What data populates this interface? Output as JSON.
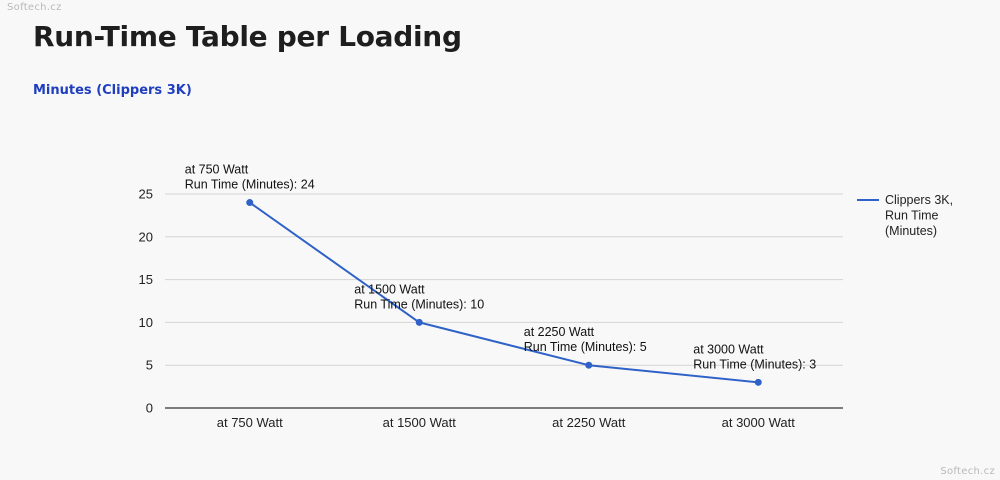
{
  "watermark": "Softech.cz",
  "header": {
    "title": "Run-Time Table per Loading",
    "subtitle": "Minutes (Clippers 3K)"
  },
  "colors": {
    "series": "#2f62c8",
    "subtitle": "#1f3fbf",
    "grid": "#d3d3d3",
    "axis": "#333333"
  },
  "legend": {
    "lines": [
      "Clippers 3K,",
      "Run Time",
      "(Minutes)"
    ],
    "placement": "right"
  },
  "chart_data": {
    "type": "line",
    "title": "Run-Time Table per Loading",
    "subtitle": "Minutes (Clippers 3K)",
    "categories": [
      "at 750 Watt",
      "at 1500 Watt",
      "at 2250 Watt",
      "at 3000 Watt"
    ],
    "series": [
      {
        "name": "Clippers 3K, Run Time (Minutes)",
        "values": [
          24,
          10,
          5,
          3
        ]
      }
    ],
    "point_labels": [
      [
        "at 750 Watt",
        "Run Time (Minutes): 24"
      ],
      [
        "at 1500 Watt",
        "Run Time (Minutes): 10"
      ],
      [
        "at 2250 Watt",
        "Run Time (Minutes): 5"
      ],
      [
        "at 3000 Watt",
        "Run Time (Minutes): 3"
      ]
    ],
    "y_ticks": [
      0,
      5,
      10,
      15,
      20,
      25
    ],
    "ylim": [
      0,
      25
    ],
    "grid": true,
    "legend_position": "right"
  }
}
